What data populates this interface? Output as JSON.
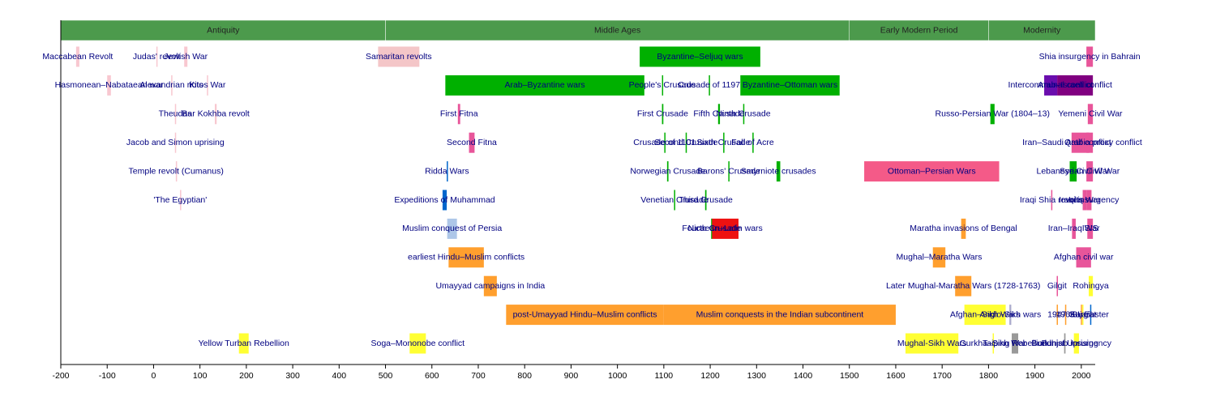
{
  "chart_data": {
    "type": "timeline",
    "xlim": [
      -200,
      2030
    ],
    "xticks": [
      -200,
      -100,
      0,
      100,
      200,
      300,
      400,
      500,
      600,
      700,
      800,
      900,
      1000,
      1100,
      1200,
      1300,
      1400,
      1500,
      1600,
      1700,
      1800,
      1900,
      2000
    ],
    "era_color": "#4c9a4c",
    "label_color": "#000080",
    "eras": [
      {
        "name": "Antiquity",
        "start": -200,
        "end": 500
      },
      {
        "name": "Middle Ages",
        "start": 500,
        "end": 1500
      },
      {
        "name": "Early Modern Period",
        "start": 1500,
        "end": 1800
      },
      {
        "name": "Modernity",
        "start": 1800,
        "end": 2030
      }
    ],
    "lanes": [
      [
        {
          "name": "Maccabean Revolt",
          "start": -167,
          "end": -160,
          "color": "#f8c8d0"
        },
        {
          "name": "Judas' revolt",
          "start": 6,
          "end": 7,
          "color": "#f8c8d0"
        },
        {
          "name": "Jewish War",
          "start": 66,
          "end": 73,
          "color": "#f8c8d0"
        },
        {
          "name": "Samaritan revolts",
          "start": 484,
          "end": 573,
          "color": "#f4c6c8"
        },
        {
          "name": "Byzantine–Seljuq wars",
          "start": 1048,
          "end": 1308,
          "color": "#00b000"
        },
        {
          "name": "Shia insurgency in Bahrain",
          "start": 2011,
          "end": 2025,
          "color": "#e8559a"
        }
      ],
      [
        {
          "name": "Hasmonean–Nabataean war",
          "start": -100,
          "end": -92,
          "color": "#f8c8d0"
        },
        {
          "name": "Alexandrian riots",
          "start": 38,
          "end": 39,
          "color": "#f8c8d0"
        },
        {
          "name": "Kitos War",
          "start": 115,
          "end": 117,
          "color": "#f8c8d0"
        },
        {
          "name": "Arab–Byzantine wars",
          "start": 629,
          "end": 1058,
          "color": "#00b000"
        },
        {
          "name": "People's Crusade",
          "start": 1096,
          "end": 1097,
          "color": "#00b000"
        },
        {
          "name": "Crusade of 1197",
          "start": 1197,
          "end": 1198,
          "color": "#00b000"
        },
        {
          "name": "Byzantine–Ottoman wars",
          "start": 1265,
          "end": 1479,
          "color": "#00b000"
        },
        {
          "name": "Intercommunal conflict",
          "start": 1920,
          "end": 1948,
          "color": "#6a0dad"
        },
        {
          "name": "Arab–Israeli conflict",
          "start": 1948,
          "end": 2025,
          "color": "#800080"
        }
      ],
      [
        {
          "name": "Theudas",
          "start": 46,
          "end": 47,
          "color": "#f8c8d0"
        },
        {
          "name": "Bar Kokhba revolt",
          "start": 132,
          "end": 136,
          "color": "#f8c8d0"
        },
        {
          "name": "First Fitna",
          "start": 656,
          "end": 661,
          "color": "#e8559a"
        },
        {
          "name": "First Crusade",
          "start": 1096,
          "end": 1099,
          "color": "#00b000"
        },
        {
          "name": "Fifth Crusade",
          "start": 1217,
          "end": 1221,
          "color": "#00b000"
        },
        {
          "name": "Ninth Crusade",
          "start": 1271,
          "end": 1272,
          "color": "#00b000"
        },
        {
          "name": "Russo-Persian War (1804–13)",
          "start": 1804,
          "end": 1813,
          "color": "#00b000"
        },
        {
          "name": "Yemeni Civil War",
          "start": 2014,
          "end": 2025,
          "color": "#e8559a"
        }
      ],
      [
        {
          "name": "Jacob and Simon uprising",
          "start": 46,
          "end": 48,
          "color": "#f8c8d0"
        },
        {
          "name": "Second Fitna",
          "start": 680,
          "end": 692,
          "color": "#e8559a"
        },
        {
          "name": "Crusade of 1101",
          "start": 1101,
          "end": 1102,
          "color": "#00b000"
        },
        {
          "name": "Second Crusade",
          "start": 1147,
          "end": 1149,
          "color": "#00b000"
        },
        {
          "name": "Sixth Crusade",
          "start": 1228,
          "end": 1229,
          "color": "#00b000"
        },
        {
          "name": "Fall of Acre",
          "start": 1291,
          "end": 1292,
          "color": "#00b000"
        },
        {
          "name": "Iran–Saudi Arabia proxy conflict",
          "start": 1979,
          "end": 2025,
          "color": "#e8559a"
        },
        {
          "name": "Qatif conflict",
          "start": 2011,
          "end": 2017,
          "color": "#e8559a"
        }
      ],
      [
        {
          "name": "Temple revolt (Cumanus)",
          "start": 48,
          "end": 49,
          "color": "#f8c8d0"
        },
        {
          "name": "Ridda Wars",
          "start": 632,
          "end": 633,
          "color": "#0066cc"
        },
        {
          "name": "Norwegian Crusade",
          "start": 1107,
          "end": 1110,
          "color": "#00b000"
        },
        {
          "name": "Barons' Crusade",
          "start": 1239,
          "end": 1241,
          "color": "#00b000"
        },
        {
          "name": "Smyrniote crusades",
          "start": 1343,
          "end": 1351,
          "color": "#00b000"
        },
        {
          "name": "Ottoman–Persian Wars",
          "start": 1532,
          "end": 1823,
          "color": "#f45a88"
        },
        {
          "name": "Lebanese Civil War",
          "start": 1975,
          "end": 1990,
          "color": "#00b000"
        },
        {
          "name": "Syrian Civil War",
          "start": 2011,
          "end": 2025,
          "color": "#e8559a"
        }
      ],
      [
        {
          "name": "'The Egyptian'",
          "start": 57,
          "end": 58,
          "color": "#f8c8d0"
        },
        {
          "name": "Expeditions of Muhammad",
          "start": 623,
          "end": 632,
          "color": "#0066cc"
        },
        {
          "name": "Venetian Crusade",
          "start": 1122,
          "end": 1124,
          "color": "#00b000"
        },
        {
          "name": "Third Crusade",
          "start": 1189,
          "end": 1192,
          "color": "#00b000"
        },
        {
          "name": "Iraqi Shia revolts",
          "start": 1935,
          "end": 1936,
          "color": "#e8559a"
        },
        {
          "name": "Iraq War",
          "start": 2003,
          "end": 2011,
          "color": "#e8559a"
        },
        {
          "name": "Iraqi insurgency",
          "start": 2011,
          "end": 2022,
          "color": "#e8559a"
        }
      ],
      [
        {
          "name": "Muslim conquest of Persia",
          "start": 633,
          "end": 654,
          "color": "#aec7e8"
        },
        {
          "name": "Fourth Crusade",
          "start": 1202,
          "end": 1204,
          "color": "#00b000"
        },
        {
          "name": "Nicaean–Latin wars",
          "start": 1204,
          "end": 1261,
          "color": "#ee1111"
        },
        {
          "name": "Maratha invasions of Bengal",
          "start": 1741,
          "end": 1751,
          "color": "#ff9f2e"
        },
        {
          "name": "Iran–Iraq War",
          "start": 1980,
          "end": 1988,
          "color": "#e8559a"
        },
        {
          "name": "ISIS",
          "start": 2013,
          "end": 2025,
          "color": "#e8559a"
        }
      ],
      [
        {
          "name": "earliest Hindu–Muslim conflicts",
          "start": 636,
          "end": 712,
          "color": "#ff9f2e"
        },
        {
          "name": "Mughal–Maratha Wars",
          "start": 1680,
          "end": 1707,
          "color": "#ff9f2e"
        },
        {
          "name": "Afghan civil war",
          "start": 1989,
          "end": 2021,
          "color": "#e8559a"
        }
      ],
      [
        {
          "name": "Umayyad campaigns in India",
          "start": 712,
          "end": 740,
          "color": "#ff9f2e"
        },
        {
          "name": "Later Mughal-Maratha Wars (1728-1763)",
          "start": 1728,
          "end": 1763,
          "color": "#ff9f2e"
        },
        {
          "name": "Gilgit",
          "start": 1947,
          "end": 1948,
          "color": "#e8559a"
        },
        {
          "name": "Rohingya",
          "start": 2016,
          "end": 2025,
          "color": "#ffff33"
        }
      ],
      [
        {
          "name": "post-Umayyad Hindu–Muslim conflicts",
          "start": 760,
          "end": 1100,
          "color": "#ff9f2e"
        },
        {
          "name": "Muslim conquests in the Indian subcontinent",
          "start": 1100,
          "end": 1600,
          "color": "#ff9f2e"
        },
        {
          "name": "Afghan–Sikh Wars",
          "start": 1748,
          "end": 1837,
          "color": "#ffff33"
        },
        {
          "name": "Anglo-Sikh wars",
          "start": 1845,
          "end": 1849,
          "color": "#aaaacc"
        },
        {
          "name": "1947",
          "start": 1947,
          "end": 1948,
          "color": "#ff9f2e"
        },
        {
          "name": "1965",
          "start": 1965,
          "end": 1966,
          "color": "#ff9f2e"
        },
        {
          "name": "Kargil",
          "start": 1999,
          "end": 2000,
          "color": "#ff9f2e"
        },
        {
          "name": "Gujarat",
          "start": 2002,
          "end": 2003,
          "color": "#ffff33"
        },
        {
          "name": "SL Easter",
          "start": 2019,
          "end": 2020,
          "color": "#0066cc"
        }
      ],
      [
        {
          "name": "Yellow Turban Rebellion",
          "start": 184,
          "end": 205,
          "color": "#ffff33"
        },
        {
          "name": "Soga–Mononobe conflict",
          "start": 552,
          "end": 587,
          "color": "#ffff33"
        },
        {
          "name": "Mughal-Sikh Wars",
          "start": 1621,
          "end": 1735,
          "color": "#ffff33"
        },
        {
          "name": "Gurkha–Sikh War",
          "start": 1809,
          "end": 1810,
          "color": "#ffff33"
        },
        {
          "name": "Taiping Rebellion",
          "start": 1850,
          "end": 1864,
          "color": "#999999"
        },
        {
          "name": "Buddhist Uprising",
          "start": 1963,
          "end": 1966,
          "color": "#999999"
        },
        {
          "name": "Punjab insurgency",
          "start": 1984,
          "end": 1995,
          "color": "#ffff33"
        }
      ]
    ]
  }
}
